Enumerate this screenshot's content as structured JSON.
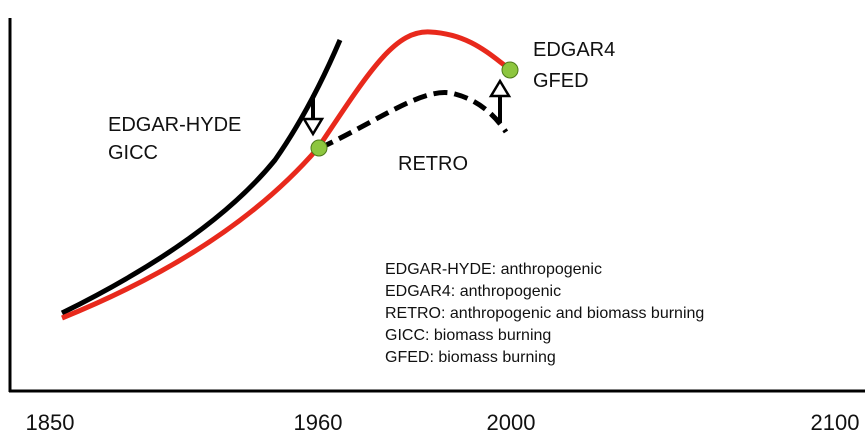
{
  "axis": {
    "ticks": [
      "1850",
      "1960",
      "2000",
      "2100"
    ]
  },
  "labels": {
    "edgar_hyde": "EDGAR-HYDE",
    "gicc": "GICC",
    "edgar4": "EDGAR4",
    "gfed": "GFED",
    "retro": "RETRO"
  },
  "legend": [
    "EDGAR-HYDE: anthropogenic",
    "EDGAR4: anthropogenic",
    "RETRO: anthropogenic and biomass burning",
    "GICC: biomass burning",
    "GFED: biomass burning"
  ]
}
